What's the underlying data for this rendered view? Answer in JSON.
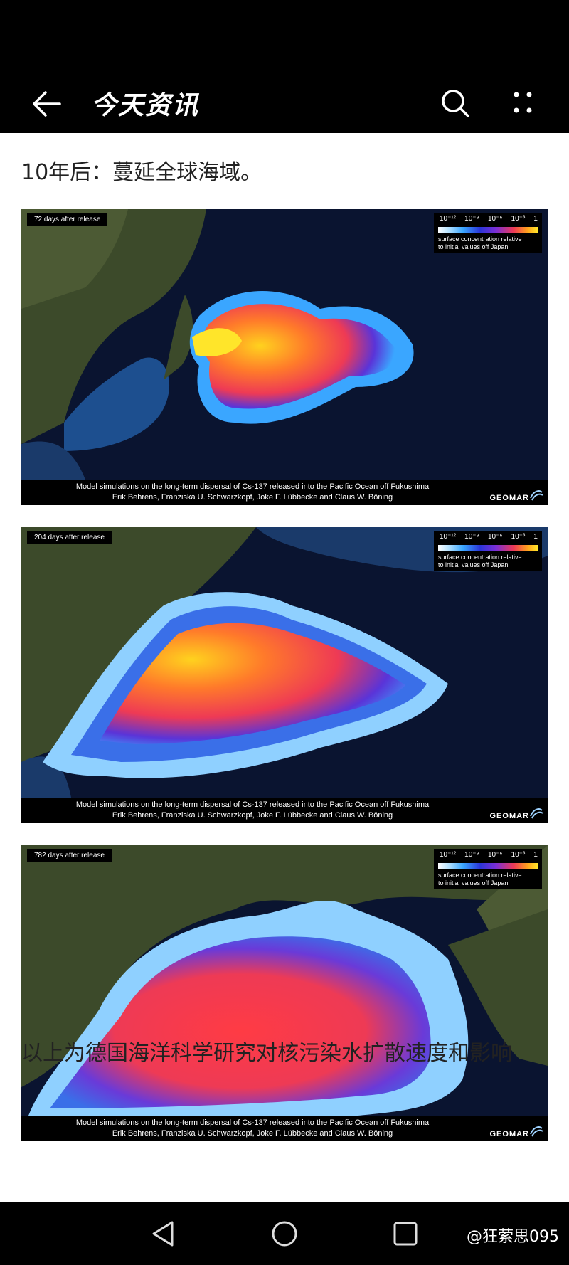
{
  "app": {
    "title": "今天资讯",
    "icons": {
      "back": "arrow-left-icon",
      "search": "search-icon",
      "more": "more-dots-icon"
    }
  },
  "article": {
    "heading": "10年后：蔓延全球海域。",
    "footer_text": "以上为德国海洋科学研究对核污染水扩散速度和影响"
  },
  "panels": [
    {
      "days_label": "72 days after release",
      "plume_spread": "small"
    },
    {
      "days_label": "204 days after release",
      "plume_spread": "medium"
    },
    {
      "days_label": "782 days after release",
      "plume_spread": "large"
    }
  ],
  "legend": {
    "ticks": [
      "10⁻¹²",
      "10⁻⁹",
      "10⁻⁶",
      "10⁻³",
      "1"
    ],
    "label_line1": "surface concentration relative",
    "label_line2": "to initial values off Japan"
  },
  "caption": {
    "line1": "Model simulations on the long-term dispersal of Cs-137 released into the Pacific Ocean off Fukushima",
    "line2": "Erik Behrens, Franziska U. Schwarzkopf, Joke F. Lübbecke and Claus W. Böning",
    "logo_text": "GEOMAR"
  },
  "navbar": {
    "icons": {
      "back": "nav-back-triangle-icon",
      "home": "nav-home-circle-icon",
      "recent": "nav-recent-square-icon"
    },
    "watermark": "@狂萦思095"
  },
  "colors": {
    "bar_background": "#000000",
    "page_background": "#ffffff",
    "ocean_deep": "#0a1430",
    "land": "#3c4a2a",
    "plume_hot": "#ffd21e",
    "plume_mid": "#ee3a55",
    "plume_edge": "#3aa6ff"
  }
}
